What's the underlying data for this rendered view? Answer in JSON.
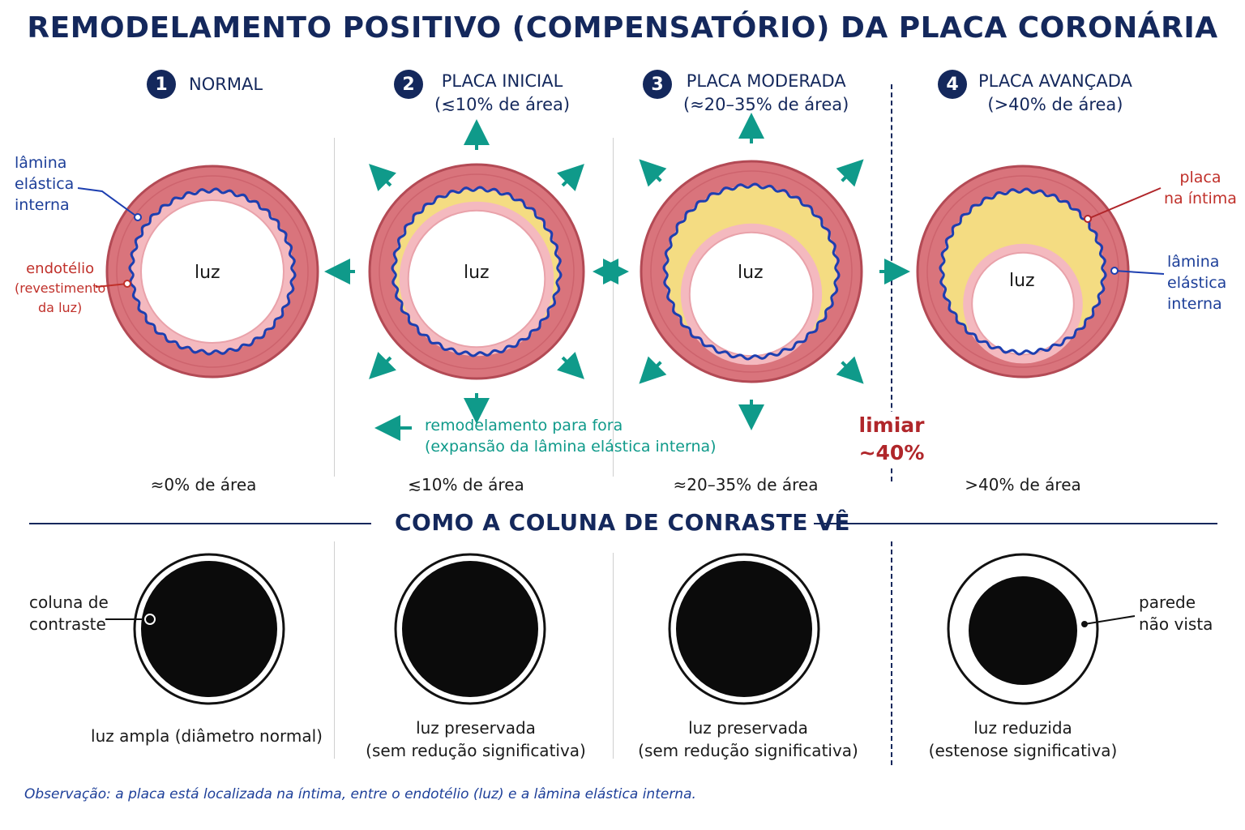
{
  "title": "REMODELAMENTO POSITIVO (COMPENSATÓRIO) DA PLACA CORONÁRIA",
  "colors": {
    "navy": "#14285c",
    "wall": "#d9747c",
    "wall_outer": "#b34a55",
    "endothelium": "#f4b9bf",
    "elastic_lamina": "#1d3fb0",
    "plaque": "#f4dc82",
    "arrow_teal": "#0f9a8a",
    "threshold_red": "#b0262a"
  },
  "stages": [
    {
      "number": "1",
      "title": "NORMAL",
      "subtitle": "",
      "plaque_fraction": 0,
      "area_label": "≈0% de área",
      "lumen_label": "luz",
      "contrast_caption_1": "luz ampla (diâmetro normal)",
      "contrast_caption_2": ""
    },
    {
      "number": "2",
      "title": "PLACA INICIAL",
      "subtitle": "(≲10% de área)",
      "plaque_fraction": 0.1,
      "area_label": "≲10% de área",
      "lumen_label": "luz",
      "contrast_caption_1": "luz preservada",
      "contrast_caption_2": "(sem redução significativa)"
    },
    {
      "number": "3",
      "title": "PLACA MODERADA",
      "subtitle": "(≈20–35% de área)",
      "plaque_fraction": 0.3,
      "area_label": "≈20–35% de área",
      "lumen_label": "luz",
      "contrast_caption_1": "luz preservada",
      "contrast_caption_2": "(sem redução significativa)"
    },
    {
      "number": "4",
      "title": "PLACA AVANÇADA",
      "subtitle": "(>40% de área)",
      "plaque_fraction": 0.45,
      "area_label": ">40% de área",
      "lumen_label": "luz",
      "contrast_caption_1": "luz reduzida",
      "contrast_caption_2": "(estenose significativa)"
    }
  ],
  "labels": {
    "lamina_left": [
      "lâmina",
      "elástica",
      "interna"
    ],
    "endothelium": [
      "endotélio",
      "(revestimento",
      "da luz)"
    ],
    "plaque_right": [
      "placa",
      "na íntima"
    ],
    "lamina_right": [
      "lâmina",
      "elástica",
      "interna"
    ],
    "remodel_1": "remodelamento para fora",
    "remodel_2": "(expansão da lâmina elástica interna)",
    "threshold_1": "limiar",
    "threshold_2": "~40%",
    "contrast_column": [
      "coluna de",
      "contraste"
    ],
    "wall_not_seen": [
      "parede",
      "não vista"
    ]
  },
  "section_title": "COMO A COLUNA DE CONRASTE VÊ",
  "observation": "Observação: a placa está localizada na íntima, entre o endotélio (luz) e a lâmina elástica interna."
}
